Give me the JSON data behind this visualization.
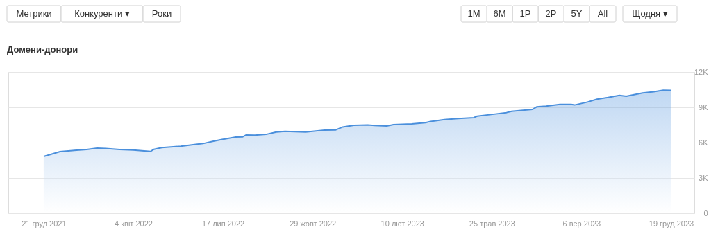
{
  "chart_data": {
    "type": "area",
    "title": "Домени-донори",
    "annotations": [
      "Метрики",
      "Конкуренти ▾",
      "Роки",
      "1M",
      "6M",
      "1P",
      "2P",
      "5Y",
      "All",
      "Щодня ▾"
    ],
    "x": [
      "2021-12-21",
      "2022-01-09",
      "2022-01-28",
      "2022-02-09",
      "2022-02-21",
      "2022-03-03",
      "2022-03-19",
      "2022-04-04",
      "2022-04-24",
      "2022-04-28",
      "2022-05-07",
      "2022-05-29",
      "2022-06-14",
      "2022-06-24",
      "2022-07-06",
      "2022-07-16",
      "2022-08-01",
      "2022-08-09",
      "2022-08-13",
      "2022-08-23",
      "2022-09-05",
      "2022-09-17",
      "2022-09-27",
      "2022-10-21",
      "2022-11-12",
      "2022-11-25",
      "2022-12-03",
      "2022-12-16",
      "2023-01-01",
      "2023-01-09",
      "2023-01-23",
      "2023-01-31",
      "2023-02-21",
      "2023-03-09",
      "2023-03-15",
      "2023-03-31",
      "2023-04-16",
      "2023-05-04",
      "2023-05-08",
      "2023-05-24",
      "2023-06-11",
      "2023-06-17",
      "2023-07-11",
      "2023-07-16",
      "2023-07-27",
      "2023-08-12",
      "2023-08-25",
      "2023-08-29",
      "2023-09-13",
      "2023-09-24",
      "2023-10-07",
      "2023-10-20",
      "2023-10-28",
      "2023-11-16",
      "2023-11-29",
      "2023-12-10",
      "2023-12-19"
    ],
    "series": [
      {
        "color": "#4a8fdc",
        "values": [
          4820,
          5240,
          5350,
          5410,
          5530,
          5500,
          5410,
          5370,
          5250,
          5430,
          5570,
          5690,
          5840,
          5920,
          6120,
          6270,
          6470,
          6490,
          6650,
          6630,
          6700,
          6900,
          6960,
          6900,
          7060,
          7080,
          7330,
          7470,
          7500,
          7450,
          7410,
          7530,
          7590,
          7690,
          7800,
          7960,
          8040,
          8120,
          8250,
          8390,
          8550,
          8660,
          8820,
          9040,
          9100,
          9250,
          9250,
          9200,
          9450,
          9690,
          9840,
          10020,
          9940,
          10220,
          10320,
          10450,
          10440
        ]
      }
    ],
    "xlim": [
      "2021-11-10",
      "2024-01-15"
    ],
    "xticks": [
      {
        "value": "2021-12-21",
        "label": "21 груд 2021"
      },
      {
        "value": "2022-04-04",
        "label": "4 квіт 2022"
      },
      {
        "value": "2022-07-17",
        "label": "17 лип 2022"
      },
      {
        "value": "2022-10-29",
        "label": "29 жовт 2022"
      },
      {
        "value": "2023-02-10",
        "label": "10 лют 2023"
      },
      {
        "value": "2023-05-25",
        "label": "25 трав 2023"
      },
      {
        "value": "2023-09-06",
        "label": "6 вер 2023"
      },
      {
        "value": "2023-12-19",
        "label": "19 груд 2023"
      }
    ],
    "ylim": [
      0,
      12000
    ],
    "yticks": [
      0,
      {
        "value": 3000,
        "label": "3K"
      },
      {
        "value": 6000,
        "label": "6K"
      },
      {
        "value": 9000,
        "label": "9K"
      },
      {
        "value": 12000,
        "label": "12K"
      }
    ],
    "grid": "y",
    "marker": "none",
    "line_style": "solid"
  }
}
